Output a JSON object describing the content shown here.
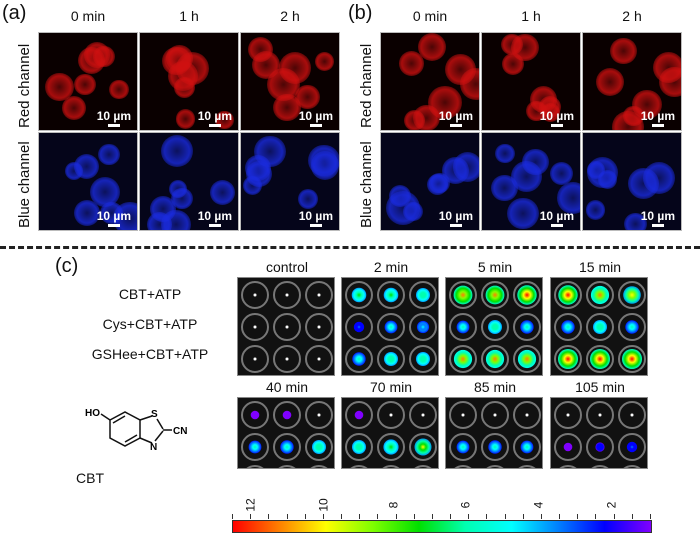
{
  "panel_a": {
    "label": "(a)",
    "columns": [
      "0 min",
      "1 h",
      "2 h"
    ],
    "rows": [
      "Red channel",
      "Blue channel"
    ],
    "scale_bar": "10 µm"
  },
  "panel_b": {
    "label": "(b)",
    "columns": [
      "0 min",
      "1 h",
      "2 h"
    ],
    "rows": [
      "Red channel",
      "Blue channel"
    ],
    "scale_bar": "10 µm"
  },
  "panel_c": {
    "label": "(c)",
    "conditions": [
      "CBT+ATP",
      "Cys+CBT+ATP",
      "GSHee+CBT+ATP"
    ],
    "molecule": {
      "name": "CBT",
      "labels": [
        "HO",
        "S",
        "N",
        "CN"
      ]
    },
    "plates": [
      {
        "title": "control",
        "wells": [
          [
            0,
            0,
            0
          ],
          [
            0,
            0,
            0
          ],
          [
            0,
            0,
            0
          ]
        ]
      },
      {
        "title": "2 min",
        "wells": [
          [
            0.55,
            0.55,
            0.5
          ],
          [
            0.2,
            0.4,
            0.35
          ],
          [
            0.45,
            0.5,
            0.5
          ]
        ]
      },
      {
        "title": "5 min",
        "wells": [
          [
            0.9,
            0.9,
            0.95
          ],
          [
            0.4,
            0.5,
            0.45
          ],
          [
            0.85,
            0.85,
            0.85
          ]
        ]
      },
      {
        "title": "15 min",
        "wells": [
          [
            0.95,
            0.85,
            0.8
          ],
          [
            0.45,
            0.5,
            0.45
          ],
          [
            1,
            1,
            1
          ]
        ]
      },
      {
        "title": "40 min",
        "wells": [
          [
            0.05,
            0.05,
            0
          ],
          [
            0.4,
            0.45,
            0.5
          ],
          [
            0.2,
            0.2,
            0.25
          ]
        ]
      },
      {
        "title": "70 min",
        "wells": [
          [
            0.05,
            0,
            0
          ],
          [
            0.5,
            0.6,
            0.75
          ],
          [
            0.2,
            0.2,
            0.25
          ]
        ]
      },
      {
        "title": "85 min",
        "wells": [
          [
            0,
            0,
            0
          ],
          [
            0.4,
            0.45,
            0.4
          ],
          [
            0,
            0.05,
            0
          ]
        ]
      },
      {
        "title": "105 min",
        "wells": [
          [
            0,
            0,
            0
          ],
          [
            0.05,
            0.1,
            0.2
          ],
          [
            0,
            0,
            0
          ]
        ]
      }
    ],
    "colorbar": {
      "ticks": [
        "12",
        "10",
        "8",
        "6",
        "4",
        "2"
      ],
      "range": [
        1,
        12.5
      ]
    }
  },
  "colors": {
    "red_channel": "#d01010",
    "blue_channel": "#1a2be0"
  }
}
